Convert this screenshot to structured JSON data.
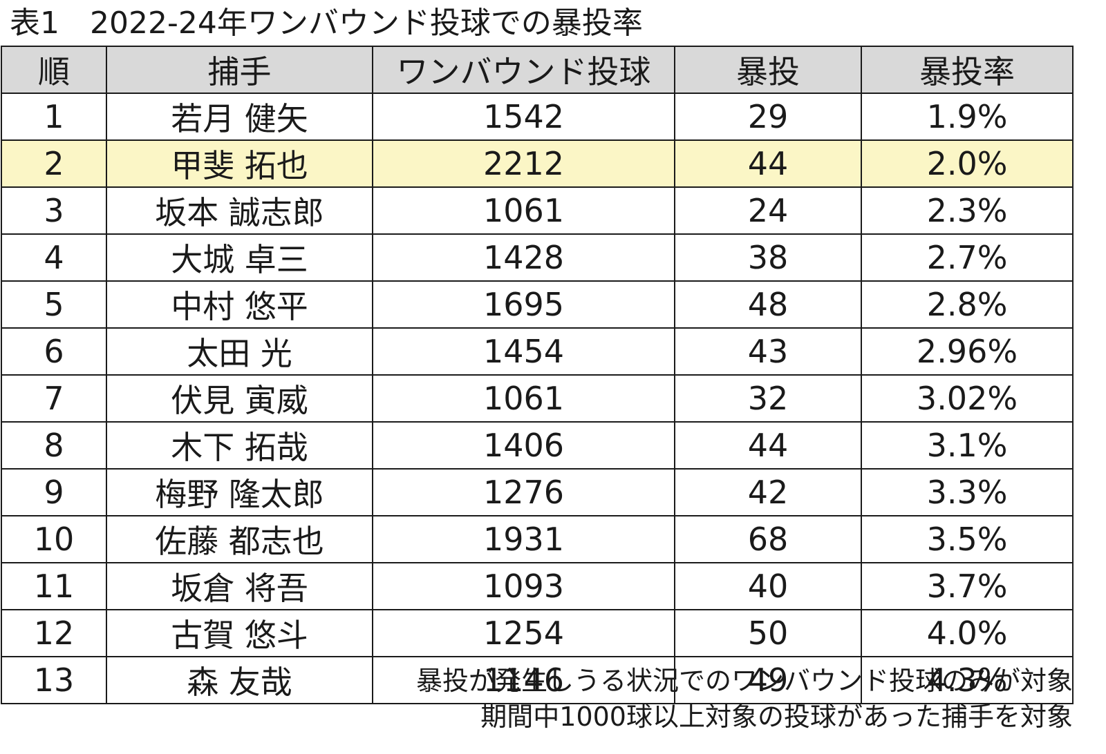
{
  "title": "表1　2022-24年ワンバウンド投球での暴投率",
  "table": {
    "headers": [
      "順",
      "捕手",
      "ワンバウンド投球",
      "暴投",
      "暴投率"
    ],
    "highlight_color": "#fbf6c6",
    "header_color": "#d9d9d9",
    "rows": [
      [
        "1",
        "若月 健矢",
        "1542",
        "29",
        "1.9%"
      ],
      [
        "2",
        "甲斐 拓也",
        "2212",
        "44",
        "2.0%"
      ],
      [
        "3",
        "坂本 誠志郎",
        "1061",
        "24",
        "2.3%"
      ],
      [
        "4",
        "大城 卓三",
        "1428",
        "38",
        "2.7%"
      ],
      [
        "5",
        "中村 悠平",
        "1695",
        "48",
        "2.8%"
      ],
      [
        "6",
        "太田 光",
        "1454",
        "43",
        "2.96%"
      ],
      [
        "7",
        "伏見 寅威",
        "1061",
        "32",
        "3.02%"
      ],
      [
        "8",
        "木下 拓哉",
        "1406",
        "44",
        "3.1%"
      ],
      [
        "9",
        "梅野 隆太郎",
        "1276",
        "42",
        "3.3%"
      ],
      [
        "10",
        "佐藤 都志也",
        "1931",
        "68",
        "3.5%"
      ],
      [
        "11",
        "坂倉 将吾",
        "1093",
        "40",
        "3.7%"
      ],
      [
        "12",
        "古賀 悠斗",
        "1254",
        "50",
        "4.0%"
      ],
      [
        "13",
        "森 友哉",
        "1146",
        "49",
        "4.3%"
      ]
    ]
  },
  "notes": [
    "暴投が発生しうる状況でのワンバウンド投球のみが対象",
    "期間中1000球以上対象の投球があった捕手を対象"
  ]
}
